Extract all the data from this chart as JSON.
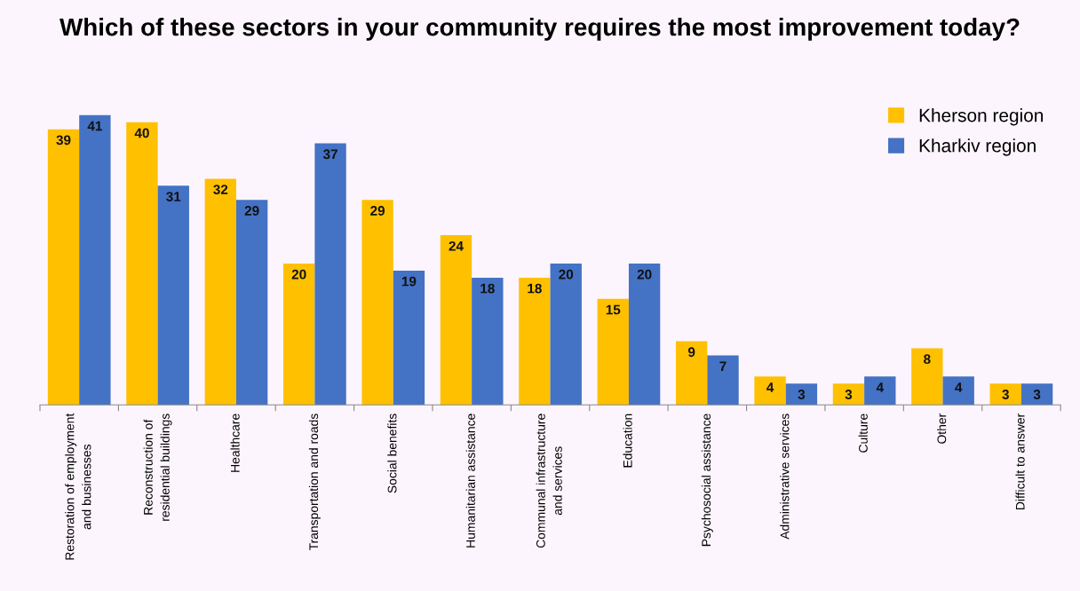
{
  "chart_data": {
    "type": "bar",
    "title": "Which of these sectors in your community requires the most improvement today?",
    "categories": [
      "Restoration of employment and businesses",
      "Reconstruction of residential buildings",
      "Healthcare",
      "Transportation and roads",
      "Social benefits",
      "Humanitarian assistance",
      "Communal infrastructure and services",
      "Education",
      "Psychosocial assistance",
      "Administrative services",
      "Culture",
      "Other",
      "Difficult to answer"
    ],
    "series": [
      {
        "name": "Kherson region",
        "color": "#ffc000",
        "values": [
          39,
          40,
          32,
          20,
          29,
          24,
          18,
          15,
          9,
          4,
          3,
          8,
          3
        ]
      },
      {
        "name": "Kharkiv region",
        "color": "#4472c4",
        "values": [
          41,
          31,
          29,
          37,
          19,
          18,
          20,
          20,
          7,
          3,
          4,
          4,
          3
        ]
      }
    ],
    "data_labels": true,
    "legend": "top right",
    "grid": false
  }
}
